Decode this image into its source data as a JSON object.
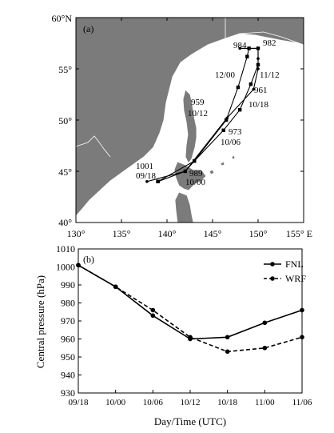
{
  "panel_a": {
    "label": "(a)",
    "lat_labels": [
      "60°N",
      "55°",
      "50°",
      "45°",
      "40°"
    ],
    "lon_labels": [
      "130°",
      "135°",
      "140°",
      "145°",
      "150°",
      "155° E"
    ],
    "colors": {
      "land": "#7b7b7b",
      "sea": "#ffffff",
      "track": "#000000"
    },
    "annotations": [
      {
        "text": "984"
      },
      {
        "text": "982"
      },
      {
        "text": "12/00"
      },
      {
        "text": "11/12"
      },
      {
        "text": "961"
      },
      {
        "text": "959"
      },
      {
        "text": "10/12"
      },
      {
        "text": "10/18"
      },
      {
        "text": "973"
      },
      {
        "text": "10/06"
      },
      {
        "text": "1001"
      },
      {
        "text": "09/18"
      },
      {
        "text": "989"
      },
      {
        "text": "10/00"
      }
    ]
  },
  "chart_data": [
    {
      "type": "map-track",
      "panel": "(a)",
      "lon_range": [
        130,
        155
      ],
      "lat_range": [
        40,
        60
      ],
      "series": [
        {
          "marker": "filled-square",
          "points": [
            {
              "lon": 139.0,
              "lat": 44.0
            },
            {
              "lon": 143.0,
              "lat": 46.0
            },
            {
              "lon": 146.5,
              "lat": 50.0
            },
            {
              "lon": 147.8,
              "lat": 53.2
            },
            {
              "lon": 148.8,
              "lat": 56.2
            },
            {
              "lon": 149.0,
              "lat": 57.0
            },
            {
              "lon": 150.0,
              "lat": 57.0
            },
            {
              "lon": 150.0,
              "lat": 55.4
            },
            {
              "lon": 149.2,
              "lat": 53.5
            },
            {
              "lon": 148.0,
              "lat": 51.0
            },
            {
              "lon": 146.2,
              "lat": 49.0
            },
            {
              "lon": 143.0,
              "lat": 46.0
            },
            {
              "lon": 142.0,
              "lat": 45.0
            },
            {
              "lon": 139.0,
              "lat": 44.0
            }
          ]
        },
        {
          "marker": "filled-circle",
          "points": [
            {
              "lon": 137.8,
              "lat": 44.0
            },
            {
              "lon": 142.0,
              "lat": 45.0
            },
            {
              "lon": 146.6,
              "lat": 50.2
            },
            {
              "lon": 149.5,
              "lat": 53.0
            },
            {
              "lon": 150.0,
              "lat": 55.0
            },
            {
              "lon": 150.0,
              "lat": 56.0
            },
            {
              "lon": 150.0,
              "lat": 57.0
            },
            {
              "lon": 148.0,
              "lat": 57.0
            }
          ]
        }
      ]
    },
    {
      "type": "line",
      "panel": "(b)",
      "categories": [
        "09/18",
        "10/00",
        "10/06",
        "10/12",
        "10/18",
        "11/00",
        "11/06"
      ],
      "series": [
        {
          "name": "FNL",
          "style": "solid",
          "values": [
            1001,
            989,
            973,
            960,
            961,
            969,
            976
          ]
        },
        {
          "name": "WRF",
          "style": "dashed",
          "values": [
            1001,
            989,
            976,
            961,
            953,
            955,
            961
          ]
        }
      ],
      "xlabel": "Day/Time (UTC)",
      "ylabel": "Central pressure (hPa)",
      "ylim": [
        930,
        1010
      ],
      "yticks": [
        930,
        940,
        950,
        960,
        970,
        980,
        990,
        1000,
        1010
      ],
      "legend": "top-right",
      "grid": false,
      "label": "(b)"
    }
  ]
}
